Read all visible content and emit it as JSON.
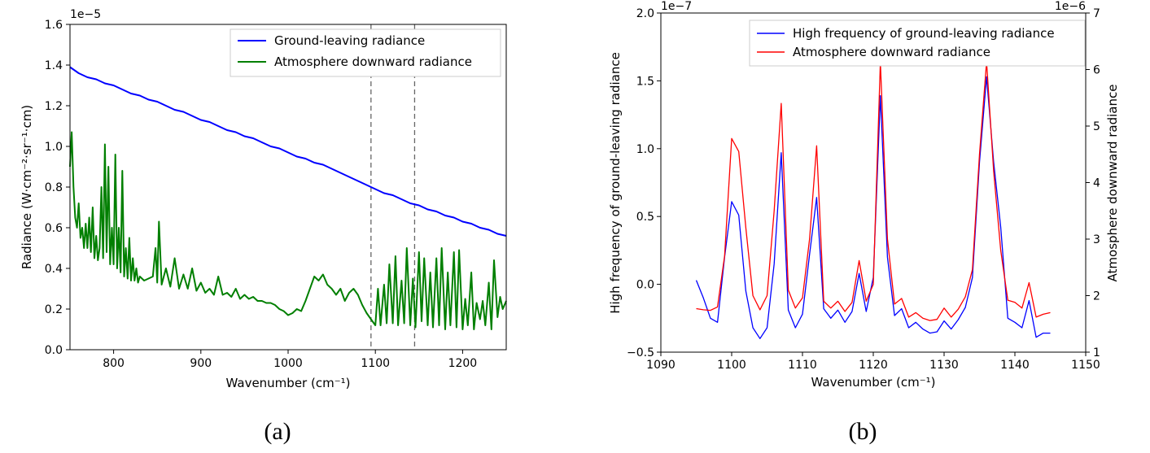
{
  "chart_data": [
    {
      "panel": "a",
      "caption": "(a)",
      "type": "line",
      "title": "",
      "xlabel": "Wavenumber (cm⁻¹)",
      "ylabel": "Radiance (W·cm⁻²·sr⁻¹·cm)",
      "offset_text": "1e−5",
      "xlim": [
        750,
        1250
      ],
      "ylim": [
        0,
        1.6
      ],
      "xticks": [
        800,
        900,
        1000,
        1100,
        1200
      ],
      "yticks": [
        "0.0",
        "0.2",
        "0.4",
        "0.6",
        "0.8",
        "1.0",
        "1.2",
        "1.4",
        "1.6"
      ],
      "vlines": [
        1095,
        1145
      ],
      "legend_position": "upper right",
      "grid": false,
      "series": [
        {
          "name": "Ground-leaving radiance",
          "color": "#0000ff",
          "x": [
            750,
            760,
            770,
            780,
            790,
            800,
            810,
            820,
            830,
            840,
            850,
            860,
            870,
            880,
            890,
            900,
            910,
            920,
            930,
            940,
            950,
            960,
            970,
            980,
            990,
            1000,
            1010,
            1020,
            1030,
            1040,
            1050,
            1060,
            1070,
            1080,
            1090,
            1100,
            1110,
            1120,
            1130,
            1140,
            1150,
            1160,
            1170,
            1180,
            1190,
            1200,
            1210,
            1220,
            1230,
            1240,
            1250
          ],
          "y": [
            1.39,
            1.36,
            1.34,
            1.33,
            1.31,
            1.3,
            1.28,
            1.26,
            1.25,
            1.23,
            1.22,
            1.2,
            1.18,
            1.17,
            1.15,
            1.13,
            1.12,
            1.1,
            1.08,
            1.07,
            1.05,
            1.04,
            1.02,
            1.0,
            0.99,
            0.97,
            0.95,
            0.94,
            0.92,
            0.91,
            0.89,
            0.87,
            0.85,
            0.83,
            0.81,
            0.79,
            0.77,
            0.76,
            0.74,
            0.72,
            0.71,
            0.69,
            0.68,
            0.66,
            0.65,
            0.63,
            0.62,
            0.6,
            0.59,
            0.57,
            0.56
          ]
        },
        {
          "name": "Atmosphere downward radiance",
          "color": "#007f00",
          "x": [
            750,
            752,
            754,
            756,
            758,
            760,
            762,
            764,
            766,
            768,
            770,
            772,
            774,
            776,
            778,
            780,
            782,
            784,
            786,
            788,
            790,
            792,
            794,
            796,
            798,
            800,
            802,
            804,
            806,
            808,
            810,
            812,
            814,
            816,
            818,
            820,
            822,
            824,
            826,
            828,
            830,
            835,
            840,
            845,
            848,
            850,
            852,
            855,
            860,
            865,
            870,
            875,
            880,
            885,
            890,
            895,
            900,
            905,
            910,
            915,
            920,
            925,
            930,
            935,
            940,
            945,
            950,
            955,
            960,
            965,
            970,
            975,
            980,
            985,
            990,
            995,
            1000,
            1005,
            1010,
            1015,
            1020,
            1025,
            1030,
            1035,
            1040,
            1045,
            1050,
            1055,
            1060,
            1065,
            1070,
            1075,
            1080,
            1085,
            1090,
            1095,
            1100,
            1103,
            1106,
            1110,
            1113,
            1116,
            1120,
            1123,
            1126,
            1130,
            1133,
            1136,
            1140,
            1143,
            1146,
            1150,
            1153,
            1156,
            1160,
            1163,
            1166,
            1170,
            1173,
            1176,
            1180,
            1183,
            1186,
            1190,
            1193,
            1196,
            1200,
            1203,
            1206,
            1210,
            1213,
            1216,
            1220,
            1223,
            1226,
            1230,
            1233,
            1236,
            1240,
            1243,
            1246,
            1250
          ],
          "y": [
            0.9,
            1.07,
            0.8,
            0.65,
            0.6,
            0.72,
            0.55,
            0.6,
            0.5,
            0.62,
            0.5,
            0.65,
            0.48,
            0.7,
            0.45,
            0.56,
            0.44,
            0.5,
            0.8,
            0.45,
            1.01,
            0.48,
            0.9,
            0.42,
            0.6,
            0.42,
            0.96,
            0.4,
            0.6,
            0.38,
            0.88,
            0.36,
            0.5,
            0.35,
            0.55,
            0.34,
            0.45,
            0.34,
            0.4,
            0.33,
            0.36,
            0.34,
            0.35,
            0.36,
            0.5,
            0.33,
            0.63,
            0.32,
            0.4,
            0.31,
            0.45,
            0.3,
            0.37,
            0.3,
            0.4,
            0.29,
            0.33,
            0.28,
            0.3,
            0.27,
            0.36,
            0.27,
            0.28,
            0.26,
            0.3,
            0.25,
            0.27,
            0.25,
            0.26,
            0.24,
            0.24,
            0.23,
            0.23,
            0.22,
            0.2,
            0.19,
            0.17,
            0.18,
            0.2,
            0.19,
            0.24,
            0.3,
            0.36,
            0.34,
            0.37,
            0.32,
            0.3,
            0.27,
            0.3,
            0.24,
            0.28,
            0.3,
            0.27,
            0.22,
            0.18,
            0.15,
            0.12,
            0.3,
            0.12,
            0.32,
            0.13,
            0.42,
            0.13,
            0.46,
            0.12,
            0.34,
            0.13,
            0.5,
            0.12,
            0.35,
            0.11,
            0.48,
            0.14,
            0.45,
            0.12,
            0.38,
            0.11,
            0.45,
            0.12,
            0.5,
            0.1,
            0.38,
            0.12,
            0.48,
            0.11,
            0.49,
            0.1,
            0.25,
            0.12,
            0.38,
            0.1,
            0.23,
            0.15,
            0.24,
            0.12,
            0.33,
            0.1,
            0.44,
            0.16,
            0.26,
            0.2,
            0.24
          ]
        }
      ]
    },
    {
      "panel": "b",
      "caption": "(b)",
      "type": "line",
      "title": "",
      "xlabel": "Wavenumber (cm⁻¹)",
      "ylabel_left": "High frequency of ground-leaving radiance",
      "ylabel_right": "Atmosphere downward radiance",
      "offset_text_left": "1e−7",
      "offset_text_right": "1e−6",
      "xlim": [
        1090,
        1150
      ],
      "ylim_left": [
        -0.5,
        2.0
      ],
      "ylim_right": [
        1,
        7
      ],
      "xticks": [
        1090,
        1100,
        1110,
        1120,
        1130,
        1140,
        1150
      ],
      "yticks_left": [
        "−0.5",
        "0.0",
        "0.5",
        "1.0",
        "1.5",
        "2.0"
      ],
      "yticks_right": [
        "1",
        "2",
        "3",
        "4",
        "5",
        "6",
        "7"
      ],
      "legend_position": "upper right",
      "grid": false,
      "series": [
        {
          "name": "High frequency of ground-leaving radiance",
          "color": "#0000ff",
          "axis": "left",
          "x": [
            1095,
            1096,
            1097,
            1098,
            1099,
            1100,
            1101,
            1102,
            1103,
            1104,
            1105,
            1106,
            1107,
            1108,
            1109,
            1110,
            1111,
            1112,
            1113,
            1114,
            1115,
            1116,
            1117,
            1118,
            1119,
            1120,
            1121,
            1122,
            1123,
            1124,
            1125,
            1126,
            1127,
            1128,
            1129,
            1130,
            1131,
            1132,
            1133,
            1134,
            1135,
            1136,
            1137,
            1138,
            1139,
            1140,
            1141,
            1142,
            1143,
            1144,
            1145
          ],
          "y": [
            0.03,
            -0.1,
            -0.25,
            -0.28,
            0.2,
            0.61,
            0.51,
            -0.05,
            -0.32,
            -0.4,
            -0.32,
            0.15,
            0.97,
            -0.19,
            -0.32,
            -0.22,
            0.22,
            0.64,
            -0.18,
            -0.25,
            -0.19,
            -0.28,
            -0.2,
            0.08,
            -0.2,
            0.05,
            1.39,
            0.2,
            -0.23,
            -0.18,
            -0.32,
            -0.28,
            -0.33,
            -0.36,
            -0.35,
            -0.27,
            -0.33,
            -0.26,
            -0.17,
            0.05,
            0.9,
            1.53,
            0.9,
            0.42,
            -0.25,
            -0.28,
            -0.32,
            -0.12,
            -0.39,
            -0.36,
            -0.36
          ]
        },
        {
          "name": "Atmosphere downward radiance",
          "color": "#ff0000",
          "axis": "right",
          "x": [
            1095,
            1096,
            1097,
            1098,
            1099,
            1100,
            1101,
            1102,
            1103,
            1104,
            1105,
            1106,
            1107,
            1108,
            1109,
            1110,
            1111,
            1112,
            1113,
            1114,
            1115,
            1116,
            1117,
            1118,
            1119,
            1120,
            1121,
            1122,
            1123,
            1124,
            1125,
            1126,
            1127,
            1128,
            1129,
            1130,
            1131,
            1132,
            1133,
            1134,
            1135,
            1136,
            1137,
            1138,
            1139,
            1140,
            1141,
            1142,
            1143,
            1144,
            1145
          ],
          "y": [
            1.77,
            1.75,
            1.74,
            1.8,
            2.7,
            4.78,
            4.55,
            3.2,
            2.0,
            1.75,
            2.0,
            3.5,
            5.4,
            2.1,
            1.78,
            1.96,
            3.0,
            4.65,
            1.9,
            1.78,
            1.9,
            1.72,
            1.88,
            2.62,
            1.9,
            2.2,
            6.13,
            3.0,
            1.85,
            1.95,
            1.62,
            1.7,
            1.6,
            1.56,
            1.58,
            1.78,
            1.62,
            1.76,
            1.98,
            2.46,
            4.5,
            6.14,
            4.2,
            2.8,
            1.92,
            1.88,
            1.78,
            2.23,
            1.62,
            1.67,
            1.7
          ]
        }
      ]
    }
  ]
}
